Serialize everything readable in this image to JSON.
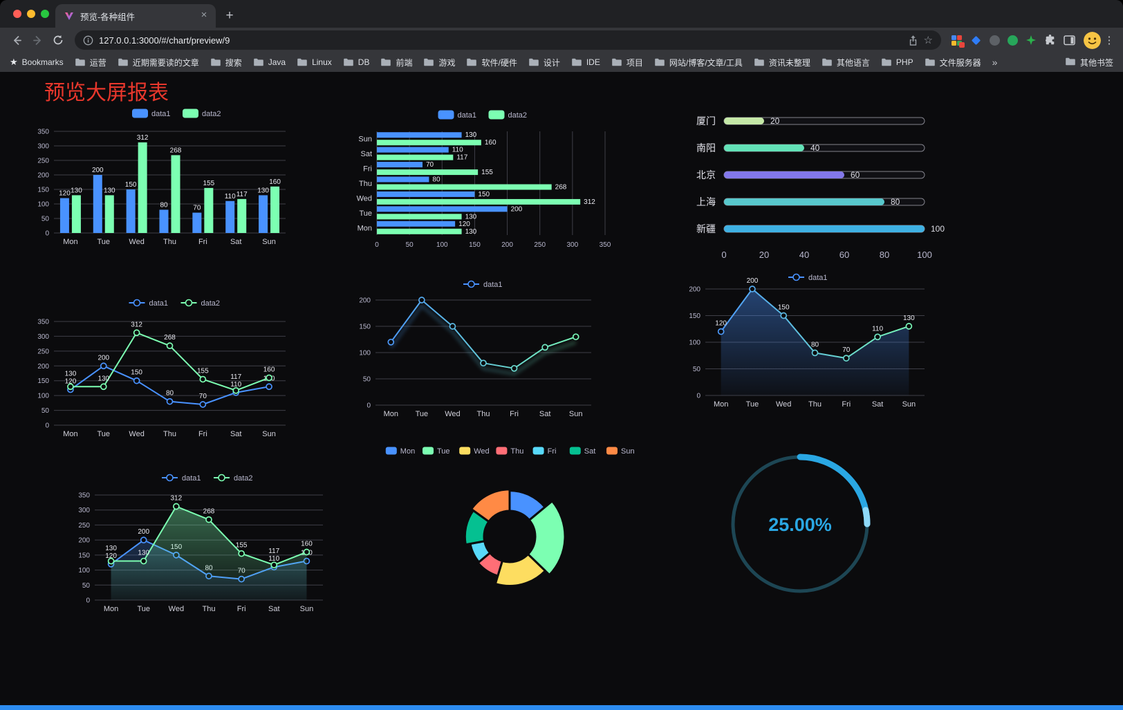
{
  "browser": {
    "tab": {
      "title": "预览-各种组件"
    },
    "url": "127.0.0.1:3000/#/chart/preview/9",
    "bookmarks_bar": {
      "bookmarks_label": "Bookmarks",
      "folders": [
        "运营",
        "近期需要读的文章",
        "搜索",
        "Java",
        "Linux",
        "DB",
        "前端",
        "游戏",
        "软件/硬件",
        "设计",
        "IDE",
        "项目",
        "网站/博客/文章/工具",
        "资讯未整理",
        "其他语言",
        "PHP",
        "文件服务器"
      ],
      "overflow_chevron": "»",
      "other_bookmarks": "其他书签"
    }
  },
  "page": {
    "title": "预览大屏报表",
    "title_color": "#e8372c",
    "bottom_bar_color": "#2d8cf0",
    "background_color": "#0b0b0d"
  },
  "chart_data": [
    {
      "id": "bar-grouped",
      "type": "bar",
      "categories": [
        "Mon",
        "Tue",
        "Wed",
        "Thu",
        "Fri",
        "Sat",
        "Sun"
      ],
      "series": [
        {
          "name": "data1",
          "color": "#4992ff",
          "values": [
            120,
            200,
            150,
            80,
            70,
            110,
            130
          ]
        },
        {
          "name": "data2",
          "color": "#7cffb2",
          "values": [
            130,
            130,
            312,
            268,
            155,
            117,
            160
          ]
        }
      ],
      "ylim": [
        0,
        350
      ],
      "ytick": 50,
      "legend_position": "top",
      "grid": true
    },
    {
      "id": "bar-horizontal",
      "type": "bar",
      "orientation": "horizontal",
      "categories": [
        "Mon",
        "Tue",
        "Wed",
        "Thu",
        "Fri",
        "Sat",
        "Sun"
      ],
      "series": [
        {
          "name": "data1",
          "color": "#4992ff",
          "values": [
            120,
            200,
            150,
            80,
            70,
            110,
            130
          ]
        },
        {
          "name": "data2",
          "color": "#7cffb2",
          "values": [
            130,
            130,
            312,
            268,
            155,
            117,
            160
          ]
        }
      ],
      "xlim": [
        0,
        350
      ],
      "xtick": 50,
      "legend_position": "top",
      "grid": true
    },
    {
      "id": "progress-bars",
      "type": "bar",
      "orientation": "horizontal-progress",
      "items": [
        {
          "label": "厦门",
          "value": 20,
          "color": "#c5e8a7"
        },
        {
          "label": "南阳",
          "value": 40,
          "color": "#63e2b7"
        },
        {
          "label": "北京",
          "value": 60,
          "color": "#8378ea"
        },
        {
          "label": "上海",
          "value": 80,
          "color": "#58c8cc"
        },
        {
          "label": "新疆",
          "value": 100,
          "color": "#3fb1e3"
        }
      ],
      "xlim": [
        0,
        100
      ],
      "xticks": [
        0,
        20,
        40,
        60,
        80,
        100
      ]
    },
    {
      "id": "line-two-series",
      "type": "line",
      "categories": [
        "Mon",
        "Tue",
        "Wed",
        "Thu",
        "Fri",
        "Sat",
        "Sun"
      ],
      "series": [
        {
          "name": "data1",
          "color": "#4992ff",
          "values": [
            120,
            200,
            150,
            80,
            70,
            110,
            130
          ]
        },
        {
          "name": "data2",
          "color": "#7cffb2",
          "values": [
            130,
            130,
            312,
            268,
            155,
            117,
            160
          ]
        }
      ],
      "ylim": [
        0,
        350
      ],
      "ytick": 50,
      "show_labels": true,
      "legend_position": "top"
    },
    {
      "id": "line-gradient",
      "type": "line",
      "categories": [
        "Mon",
        "Tue",
        "Wed",
        "Thu",
        "Fri",
        "Sat",
        "Sun"
      ],
      "series": [
        {
          "name": "data1",
          "gradient": [
            "#4992ff",
            "#7cffb2"
          ],
          "values": [
            120,
            200,
            150,
            80,
            70,
            110,
            130
          ]
        }
      ],
      "ylim": [
        0,
        200
      ],
      "ytick": 50,
      "show_labels": false,
      "legend_position": "top"
    },
    {
      "id": "area-single",
      "type": "area",
      "categories": [
        "Mon",
        "Tue",
        "Wed",
        "Thu",
        "Fri",
        "Sat",
        "Sun"
      ],
      "series": [
        {
          "name": "data1",
          "color": "#4992ff",
          "gradient": [
            "#4992ff",
            "#7cffb2"
          ],
          "area": true,
          "values": [
            120,
            200,
            150,
            80,
            70,
            110,
            130
          ]
        }
      ],
      "ylim": [
        0,
        200
      ],
      "ytick": 50,
      "show_labels": true,
      "legend_position": "top"
    },
    {
      "id": "area-two-series",
      "type": "area",
      "categories": [
        "Mon",
        "Tue",
        "Wed",
        "Thu",
        "Fri",
        "Sat",
        "Sun"
      ],
      "series": [
        {
          "name": "data1",
          "color": "#4992ff",
          "area": true,
          "values": [
            120,
            200,
            150,
            80,
            70,
            110,
            130
          ]
        },
        {
          "name": "data2",
          "color": "#7cffb2",
          "area": true,
          "values": [
            130,
            130,
            312,
            268,
            155,
            117,
            160
          ]
        }
      ],
      "ylim": [
        0,
        350
      ],
      "ytick": 50,
      "show_labels": true,
      "legend_position": "top"
    },
    {
      "id": "rose-pie",
      "type": "pie",
      "labels": [
        "Mon",
        "Tue",
        "Wed",
        "Thu",
        "Fri",
        "Sat",
        "Sun"
      ],
      "values": [
        120,
        200,
        150,
        80,
        70,
        110,
        130
      ],
      "colors": [
        "#4992ff",
        "#7cffb2",
        "#fddd60",
        "#ff6e76",
        "#58d9f9",
        "#05c091",
        "#ff8a45"
      ],
      "rose_type": true,
      "donut": true,
      "legend_position": "top"
    },
    {
      "id": "gauge-progress",
      "type": "gauge",
      "value": 25,
      "label": "25.00%",
      "color": "#2aa7e3",
      "track_color": "#1d4654"
    }
  ]
}
